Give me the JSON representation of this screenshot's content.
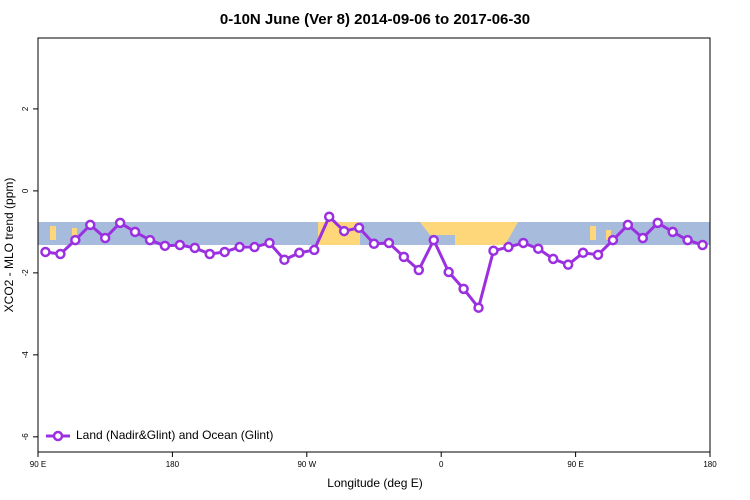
{
  "chart_data": {
    "type": "line",
    "title": "0-10N June (Ver 8)   2014-09-06 to 2017-06-30",
    "x_label": "Longitude (deg E)",
    "y_label": "XCO2 - MLO trend (ppm)",
    "x": [
      95,
      105,
      115,
      125,
      135,
      145,
      155,
      165,
      175,
      185,
      195,
      205,
      215,
      225,
      235,
      245,
      255,
      265,
      275,
      285,
      295,
      305,
      315,
      325,
      335,
      345,
      355,
      365,
      375,
      385,
      395,
      405,
      415,
      425,
      435,
      445,
      455,
      465,
      475,
      485,
      495,
      505,
      515,
      525,
      535
    ],
    "series": [
      {
        "name": "Land (Nadir&Glint) and Ocean (Glint)",
        "color": "#9b30e0",
        "values": [
          -1.49,
          -1.54,
          -1.2,
          -0.83,
          -1.15,
          -0.78,
          -1.0,
          -1.2,
          -1.34,
          -1.32,
          -1.39,
          -1.54,
          -1.49,
          -1.37,
          -1.37,
          -1.27,
          -1.68,
          -1.51,
          -1.44,
          -0.63,
          -0.98,
          -0.9,
          -1.29,
          -1.27,
          -1.61,
          -1.93,
          -1.2,
          -1.98,
          -2.39,
          -2.85,
          -1.46,
          -1.37,
          -1.27,
          -1.41,
          -1.66,
          -1.8,
          -1.51,
          -1.56,
          -1.2,
          -0.83,
          -1.15,
          -0.78,
          -1.0,
          -1.2,
          -1.32
        ]
      }
    ],
    "xlim": [
      90,
      540
    ],
    "xticks": [
      {
        "value": 90,
        "label": "90 E"
      },
      180,
      {
        "value": 270,
        "label": "90 W"
      },
      {
        "value": 360,
        "label": "0"
      },
      {
        "value": 450,
        "label": "90 E"
      },
      {
        "value": 540,
        "label": "180"
      }
    ],
    "ylim": [
      -6.37,
      3.73
    ],
    "yticks": [
      -6,
      -4,
      -2,
      0,
      2
    ],
    "legend": "bottom-left"
  }
}
